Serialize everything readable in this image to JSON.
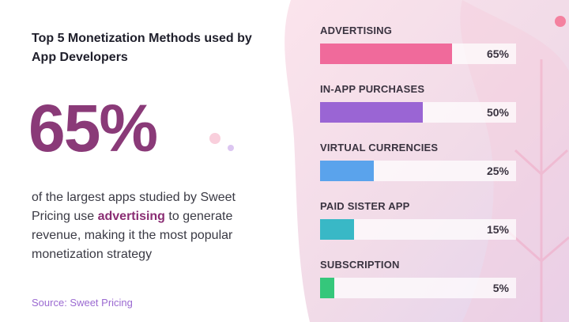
{
  "title": "Top 5 Monetization Methods used by App Developers",
  "highlight_stat": "65%",
  "description": {
    "before": "of the largest apps studied by Sweet Pricing use ",
    "highlight": "advertising",
    "after": " to generate revenue, making it the most popular monetization strategy"
  },
  "source": "Source: Sweet Pricing",
  "colors": {
    "accent": "#8a3a78",
    "advertising": "#f06a9b",
    "in_app": "#9a65d4",
    "virtual": "#5aa3ec",
    "paid_sister": "#39b8c6",
    "subscription": "#35c77b"
  },
  "chart_data": {
    "type": "bar",
    "orientation": "horizontal",
    "categories": [
      "ADVERTISING",
      "IN-APP PURCHASES",
      "VIRTUAL CURRENCIES",
      "PAID SISTER APP",
      "SUBSCRIPTION"
    ],
    "values": [
      65,
      50,
      25,
      15,
      5
    ],
    "labels": [
      "65%",
      "50%",
      "25%",
      "15%",
      "5%"
    ],
    "bar_colors": [
      "#f06a9b",
      "#9a65d4",
      "#5aa3ec",
      "#39b8c6",
      "#35c77b"
    ],
    "xlim": [
      0,
      100
    ],
    "grid": false
  }
}
